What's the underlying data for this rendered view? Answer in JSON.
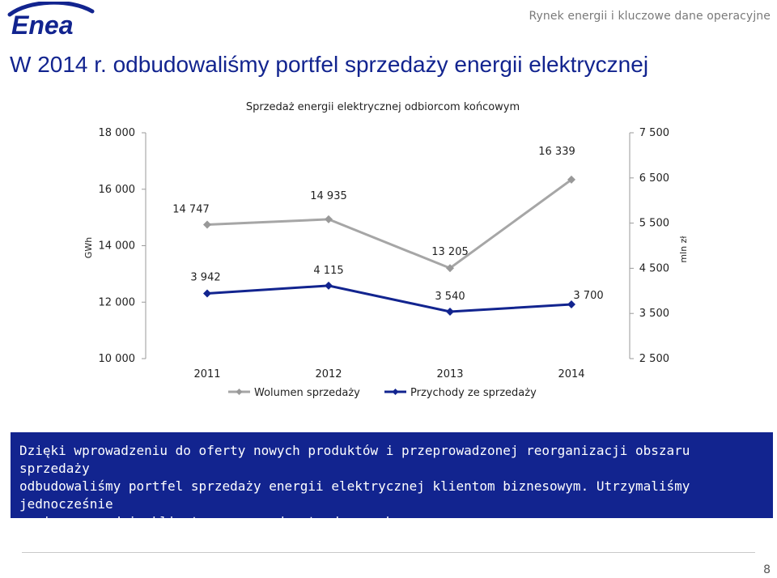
{
  "header": {
    "logo_text": "Enea",
    "caption": "Rynek energii i kluczowe dane operacyjne",
    "colors": {
      "brand_blue": "#12248f",
      "caption_gray": "#7a7a7a"
    }
  },
  "slide": {
    "title": "W 2014 r. odbudowaliśmy portfel sprzedaży energii elektrycznej",
    "page_number": "8"
  },
  "chart_data": {
    "type": "line",
    "title": "Sprzedaż energii elektrycznej odbiorcom końcowym",
    "categories": [
      "2011",
      "2012",
      "2013",
      "2014"
    ],
    "y_left": {
      "label": "GWh",
      "range": [
        10000,
        18000
      ],
      "ticks": [
        "10 000",
        "12 000",
        "14 000",
        "16 000",
        "18 000"
      ]
    },
    "y_right": {
      "label": "mln zł",
      "range": [
        2500,
        7500
      ],
      "ticks": [
        "2 500",
        "3 500",
        "4 500",
        "5 500",
        "6 500",
        "7 500"
      ]
    },
    "series": [
      {
        "name": "Wolumen sprzedaży",
        "axis": "left",
        "color": "#a6a6a6",
        "values": [
          14747,
          14935,
          13205,
          16339
        ],
        "labels": [
          "14 747",
          "14 935",
          "13 205",
          "16 339"
        ]
      },
      {
        "name": "Przychody ze sprzedaży",
        "axis": "right",
        "color": "#12248f",
        "values": [
          3942,
          4115,
          3540,
          3700
        ],
        "labels": [
          "3 942",
          "4 115",
          "3 540",
          "3 700"
        ]
      }
    ],
    "grid": false,
    "legend": "bottom"
  },
  "textbox": {
    "line1": "Dzięki wprowadzeniu do oferty nowych produktów i przeprowadzonej reorganizacji obszaru sprzedaży",
    "line2": "odbudowaliśmy portfel sprzedaży energii elektrycznej klientom biznesowym. Utrzymaliśmy jednocześnie",
    "line3": "poziom sprzedaży klientom z gospodarstw domowych."
  }
}
